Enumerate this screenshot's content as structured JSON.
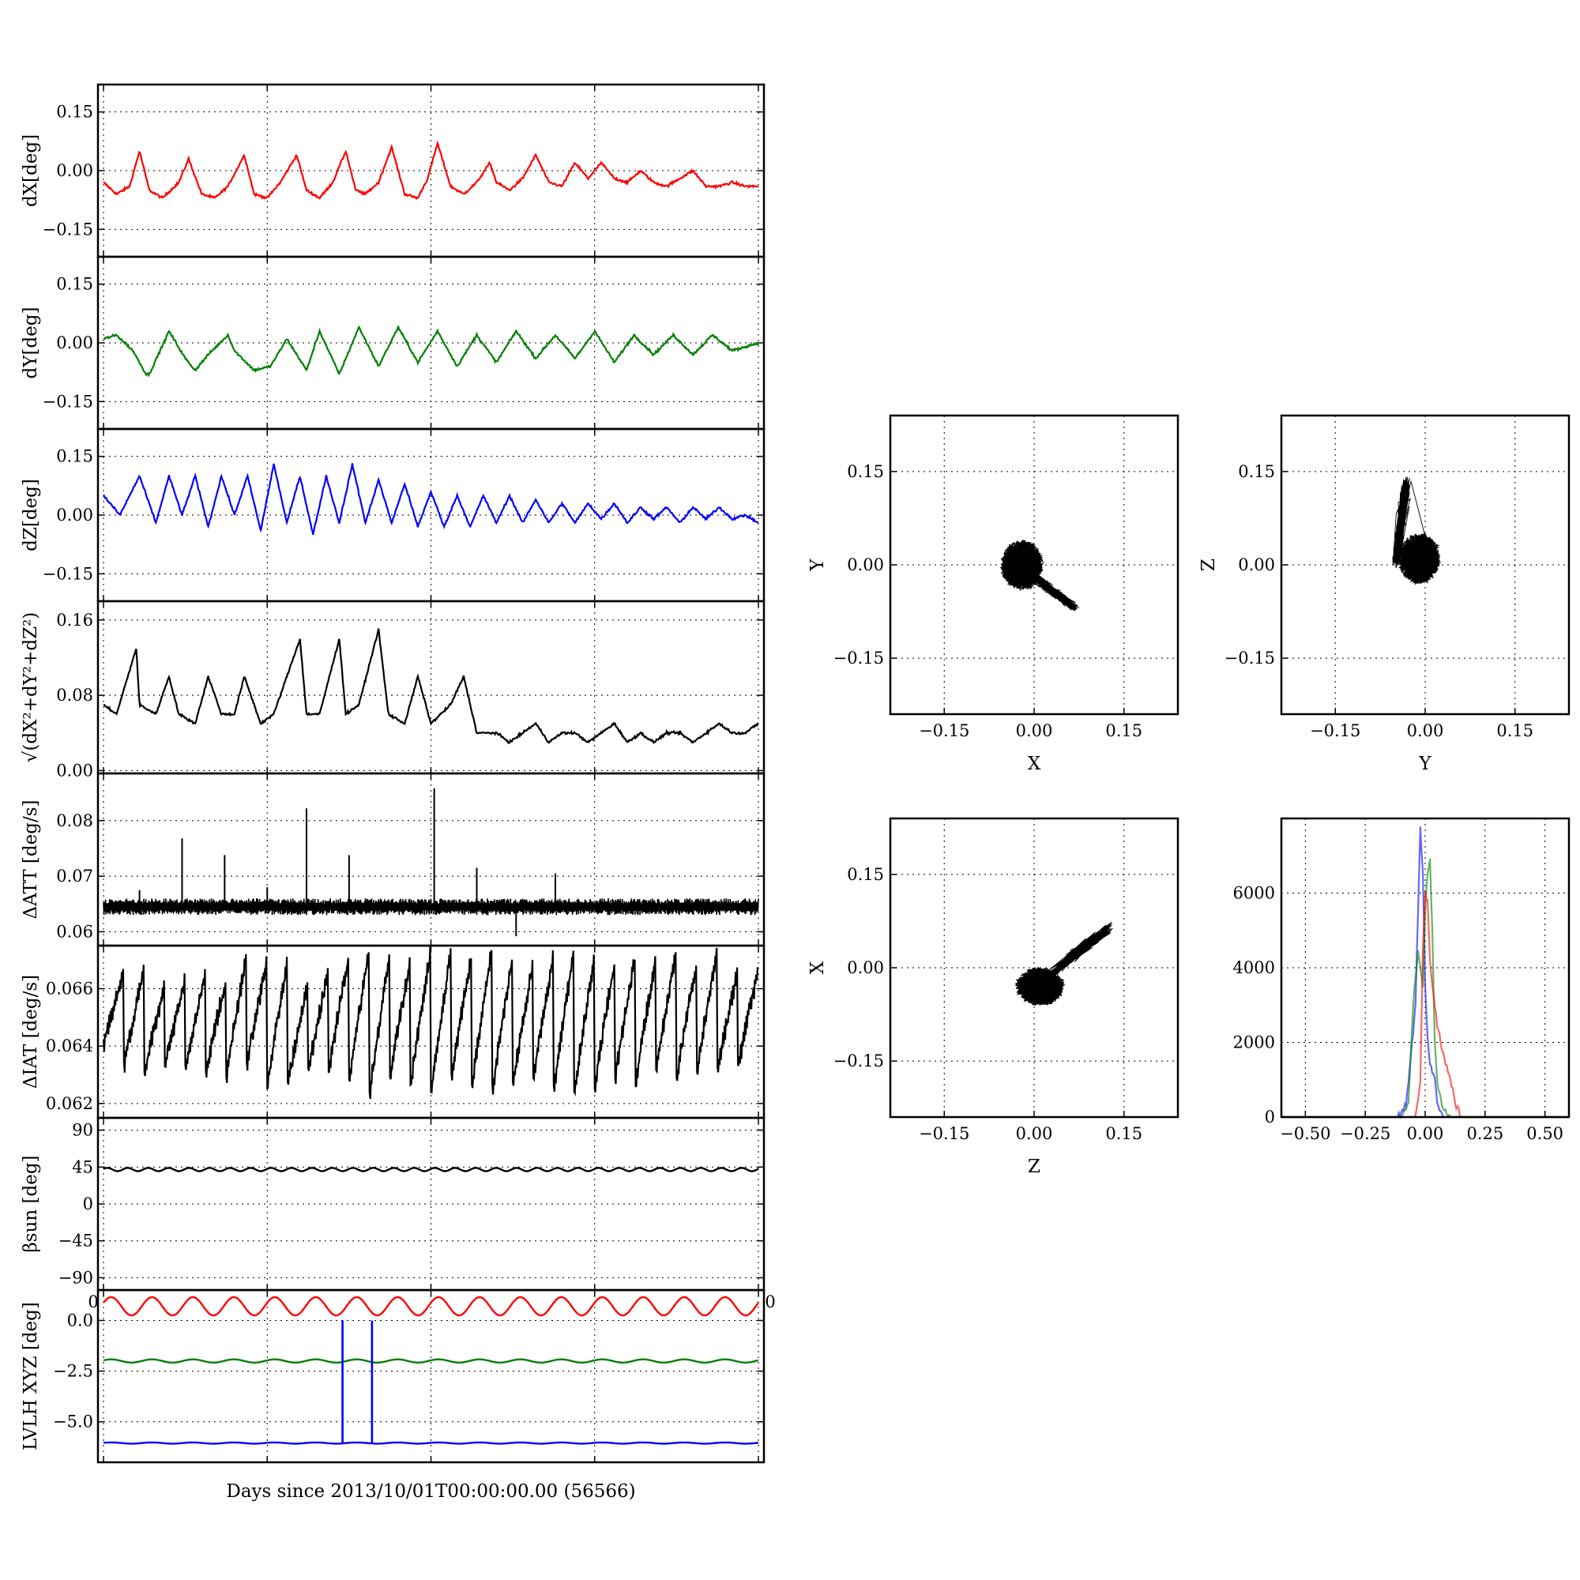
{
  "figure": {
    "xlabel": "Days since 2013/10/01T00:00:00.00 (56566)"
  },
  "chart_data": [
    {
      "id": "dx",
      "type": "line",
      "ylabel": "dX[deg]",
      "ylim": [
        -0.22,
        0.22
      ],
      "yticks": [
        -0.15,
        0.0,
        0.15
      ],
      "ytick_labels": [
        "−0.15",
        "0.00",
        "0.15"
      ],
      "xlim": [
        0,
        1
      ],
      "grid": true,
      "series": [
        {
          "color": "#ff0000",
          "x": [
            0.0,
            0.02,
            0.04,
            0.055,
            0.07,
            0.09,
            0.115,
            0.13,
            0.15,
            0.17,
            0.19,
            0.215,
            0.23,
            0.25,
            0.27,
            0.295,
            0.31,
            0.33,
            0.35,
            0.37,
            0.385,
            0.4,
            0.42,
            0.44,
            0.46,
            0.48,
            0.495,
            0.51,
            0.53,
            0.55,
            0.57,
            0.59,
            0.6,
            0.62,
            0.64,
            0.66,
            0.68,
            0.7,
            0.72,
            0.74,
            0.76,
            0.78,
            0.8,
            0.82,
            0.84,
            0.86,
            0.88,
            0.9,
            0.92,
            0.94,
            0.96,
            0.98,
            1.0
          ],
          "y": [
            -0.03,
            -0.06,
            -0.04,
            0.05,
            -0.05,
            -0.07,
            -0.03,
            0.03,
            -0.06,
            -0.07,
            -0.04,
            0.04,
            -0.06,
            -0.07,
            -0.03,
            0.04,
            -0.05,
            -0.07,
            -0.03,
            0.05,
            -0.05,
            -0.06,
            -0.03,
            0.06,
            -0.06,
            -0.07,
            -0.02,
            0.07,
            -0.04,
            -0.06,
            -0.03,
            0.02,
            -0.03,
            -0.05,
            -0.02,
            0.04,
            -0.03,
            -0.04,
            0.02,
            -0.02,
            0.02,
            -0.02,
            -0.03,
            0.0,
            -0.03,
            -0.04,
            -0.02,
            0.0,
            -0.04,
            -0.04,
            -0.03,
            -0.04,
            -0.04
          ]
        }
      ]
    },
    {
      "id": "dy",
      "type": "line",
      "ylabel": "dY[deg]",
      "ylim": [
        -0.22,
        0.22
      ],
      "yticks": [
        -0.15,
        0.0,
        0.15
      ],
      "ytick_labels": [
        "−0.15",
        "0.00",
        "0.15"
      ],
      "xlim": [
        0,
        1
      ],
      "grid": true,
      "series": [
        {
          "color": "#008000",
          "x": [
            0.0,
            0.02,
            0.045,
            0.065,
            0.07,
            0.1,
            0.125,
            0.14,
            0.16,
            0.19,
            0.2,
            0.23,
            0.255,
            0.28,
            0.31,
            0.33,
            0.36,
            0.39,
            0.42,
            0.45,
            0.48,
            0.51,
            0.54,
            0.57,
            0.6,
            0.63,
            0.66,
            0.69,
            0.72,
            0.75,
            0.78,
            0.81,
            0.84,
            0.87,
            0.9,
            0.93,
            0.96,
            1.0
          ],
          "y": [
            0.01,
            0.02,
            -0.02,
            -0.08,
            -0.08,
            0.03,
            -0.04,
            -0.07,
            -0.03,
            0.02,
            -0.02,
            -0.07,
            -0.06,
            0.01,
            -0.07,
            0.03,
            -0.08,
            0.04,
            -0.06,
            0.04,
            -0.05,
            0.03,
            -0.06,
            0.02,
            -0.05,
            0.03,
            -0.04,
            0.02,
            -0.04,
            0.03,
            -0.05,
            0.02,
            -0.03,
            0.02,
            -0.03,
            0.02,
            -0.02,
            0.0
          ]
        }
      ]
    },
    {
      "id": "dz",
      "type": "line",
      "ylabel": "dZ[deg]",
      "ylim": [
        -0.22,
        0.22
      ],
      "yticks": [
        -0.15,
        0.0,
        0.15
      ],
      "ytick_labels": [
        "−0.15",
        "0.00",
        "0.15"
      ],
      "xlim": [
        0,
        1
      ],
      "grid": true,
      "series": [
        {
          "color": "#0000ff",
          "x": [
            0.0,
            0.025,
            0.055,
            0.08,
            0.1,
            0.12,
            0.14,
            0.16,
            0.18,
            0.2,
            0.22,
            0.24,
            0.26,
            0.28,
            0.3,
            0.32,
            0.34,
            0.36,
            0.38,
            0.4,
            0.42,
            0.44,
            0.46,
            0.48,
            0.5,
            0.52,
            0.54,
            0.56,
            0.58,
            0.6,
            0.62,
            0.64,
            0.66,
            0.68,
            0.7,
            0.72,
            0.74,
            0.76,
            0.78,
            0.8,
            0.82,
            0.84,
            0.86,
            0.88,
            0.9,
            0.92,
            0.94,
            0.96,
            0.98,
            1.0
          ],
          "y": [
            0.05,
            0.0,
            0.1,
            -0.02,
            0.1,
            0.0,
            0.1,
            -0.03,
            0.1,
            0.0,
            0.1,
            -0.04,
            0.13,
            -0.02,
            0.1,
            -0.05,
            0.1,
            -0.02,
            0.13,
            -0.02,
            0.09,
            -0.02,
            0.08,
            -0.03,
            0.06,
            -0.03,
            0.05,
            -0.03,
            0.05,
            -0.02,
            0.05,
            -0.02,
            0.04,
            -0.02,
            0.03,
            -0.02,
            0.03,
            -0.01,
            0.03,
            -0.02,
            0.02,
            -0.01,
            0.02,
            -0.02,
            0.02,
            -0.01,
            0.02,
            -0.01,
            0.0,
            -0.02
          ]
        }
      ]
    },
    {
      "id": "dr",
      "type": "line",
      "ylabel": "√(dX²+dY²+dZ²)",
      "ylim": [
        -0.003,
        0.18
      ],
      "yticks": [
        0.0,
        0.08,
        0.16
      ],
      "ytick_labels": [
        "0.00",
        "0.08",
        "0.16"
      ],
      "xlim": [
        0,
        1
      ],
      "grid": true,
      "series": [
        {
          "color": "#000000",
          "x": [
            0.0,
            0.02,
            0.05,
            0.055,
            0.08,
            0.1,
            0.115,
            0.14,
            0.16,
            0.18,
            0.2,
            0.215,
            0.24,
            0.26,
            0.3,
            0.31,
            0.33,
            0.36,
            0.37,
            0.39,
            0.42,
            0.435,
            0.46,
            0.48,
            0.5,
            0.53,
            0.55,
            0.57,
            0.6,
            0.62,
            0.64,
            0.66,
            0.68,
            0.7,
            0.72,
            0.74,
            0.76,
            0.78,
            0.8,
            0.82,
            0.84,
            0.86,
            0.88,
            0.9,
            0.92,
            0.94,
            0.96,
            0.98,
            1.0
          ],
          "y": [
            0.07,
            0.06,
            0.13,
            0.07,
            0.06,
            0.1,
            0.06,
            0.05,
            0.1,
            0.06,
            0.06,
            0.1,
            0.05,
            0.06,
            0.14,
            0.06,
            0.06,
            0.14,
            0.06,
            0.07,
            0.15,
            0.06,
            0.05,
            0.1,
            0.05,
            0.07,
            0.1,
            0.04,
            0.04,
            0.03,
            0.04,
            0.05,
            0.03,
            0.04,
            0.04,
            0.03,
            0.04,
            0.05,
            0.03,
            0.04,
            0.03,
            0.04,
            0.04,
            0.03,
            0.04,
            0.05,
            0.04,
            0.04,
            0.05
          ]
        }
      ]
    },
    {
      "id": "datt",
      "type": "line",
      "ylabel": "ΔATT [deg/s]",
      "ylim": [
        0.0575,
        0.0885
      ],
      "yticks": [
        0.06,
        0.07,
        0.08
      ],
      "ytick_labels": [
        "0.06",
        "0.07",
        "0.08"
      ],
      "xlim": [
        0,
        1
      ],
      "grid": true,
      "baseline": 0.0645,
      "band": 0.0015,
      "spikes": [
        {
          "x": 0.055,
          "y": 0.0675
        },
        {
          "x": 0.12,
          "y": 0.0768
        },
        {
          "x": 0.185,
          "y": 0.0738
        },
        {
          "x": 0.25,
          "y": 0.068
        },
        {
          "x": 0.31,
          "y": 0.0822
        },
        {
          "x": 0.375,
          "y": 0.0738
        },
        {
          "x": 0.505,
          "y": 0.0858
        },
        {
          "x": 0.57,
          "y": 0.0715
        },
        {
          "x": 0.63,
          "y": 0.0592
        },
        {
          "x": 0.69,
          "y": 0.0705
        }
      ]
    },
    {
      "id": "diat",
      "type": "line",
      "ylabel": "ΔIAT [deg/s]",
      "ylim": [
        0.0615,
        0.0675
      ],
      "yticks": [
        0.062,
        0.064,
        0.066
      ],
      "ytick_labels": [
        "0.062",
        "0.064",
        "0.066"
      ],
      "xlim": [
        0,
        1
      ],
      "grid": true,
      "teeth": {
        "count": 32,
        "low": [
          0.064,
          0.0632,
          0.063,
          0.0632,
          0.063,
          0.063,
          0.0628,
          0.0633,
          0.0625,
          0.0625,
          0.063,
          0.063,
          0.0627,
          0.0622,
          0.0628,
          0.0625,
          0.0622,
          0.0628,
          0.0625,
          0.0623,
          0.0625,
          0.0628,
          0.0623,
          0.0622,
          0.0625,
          0.0628,
          0.0625,
          0.063,
          0.0628,
          0.063,
          0.063,
          0.0632
        ],
        "high": [
          0.0665,
          0.0665,
          0.066,
          0.0662,
          0.0665,
          0.0662,
          0.067,
          0.0668,
          0.0668,
          0.066,
          0.0665,
          0.067,
          0.0672,
          0.067,
          0.0668,
          0.0672,
          0.0672,
          0.067,
          0.0673,
          0.067,
          0.0668,
          0.067,
          0.0672,
          0.067,
          0.0668,
          0.067,
          0.067,
          0.0672,
          0.0668,
          0.0673,
          0.0665,
          0.0665
        ]
      }
    },
    {
      "id": "beta",
      "type": "line",
      "ylabel": "βsun [deg]",
      "ylim": [
        -105,
        105
      ],
      "yticks": [
        -90,
        -45,
        0,
        45,
        90
      ],
      "ytick_labels": [
        "−90",
        "−45",
        "0",
        "45",
        "90"
      ],
      "xlim": [
        0,
        1
      ],
      "grid": true,
      "xtick_labels_visible": [
        "0",
        "0"
      ],
      "series": [
        {
          "color": "#000000",
          "mean": 42,
          "amplitude": 2,
          "cycles": 32
        }
      ]
    },
    {
      "id": "lvlh",
      "type": "line",
      "ylabel": "LVLH XYZ [deg]",
      "ylim": [
        -7.0,
        1.5
      ],
      "yticks": [
        -5.0,
        -2.5,
        0.0
      ],
      "ytick_labels": [
        "−5.0",
        "−2.5",
        "0.0"
      ],
      "xlim": [
        0,
        1
      ],
      "grid": true,
      "series": [
        {
          "color": "#ff0000",
          "mean": 0.7,
          "amplitude": 0.45,
          "cycles": 16
        },
        {
          "color": "#008000",
          "mean": -2.0,
          "amplitude": 0.08,
          "cycles": 16
        },
        {
          "color": "#0000ff",
          "mean": -6.05,
          "amplitude": 0.03,
          "cycles": 16,
          "spikes": [
            {
              "x": 0.365,
              "y": 0.0
            },
            {
              "x": 0.41,
              "y": 0.0
            }
          ]
        }
      ]
    },
    {
      "id": "scatter_xy",
      "type": "scatter",
      "xlabel": "X",
      "ylabel": "Y",
      "xlim": [
        -0.24,
        0.24
      ],
      "ylim": [
        -0.24,
        0.24
      ],
      "ticks": [
        -0.15,
        0.0,
        0.15
      ],
      "tick_labels": [
        "−0.15",
        "0.00",
        "0.15"
      ],
      "grid": true,
      "cloud": {
        "cx": -0.02,
        "cy": 0.0,
        "rx": 0.035,
        "ry": 0.04,
        "tail_to": [
          0.07,
          -0.07
        ],
        "tail_from": [
          0.0,
          -0.02
        ]
      }
    },
    {
      "id": "scatter_yz",
      "type": "scatter",
      "xlabel": "Y",
      "ylabel": "Z",
      "xlim": [
        -0.24,
        0.24
      ],
      "ylim": [
        -0.24,
        0.24
      ],
      "ticks": [
        -0.15,
        0.0,
        0.15
      ],
      "tick_labels": [
        "−0.15",
        "0.00",
        "0.15"
      ],
      "grid": true,
      "cloud": {
        "cx": -0.01,
        "cy": 0.01,
        "rx": 0.035,
        "ry": 0.04,
        "tail_to": [
          -0.03,
          0.14
        ],
        "tail_from": [
          -0.05,
          0.0
        ]
      }
    },
    {
      "id": "scatter_zx",
      "type": "scatter",
      "xlabel": "Z",
      "ylabel": "X",
      "xlim": [
        -0.24,
        0.24
      ],
      "ylim": [
        -0.24,
        0.24
      ],
      "ticks": [
        -0.15,
        0.0,
        0.15
      ],
      "tick_labels": [
        "−0.15",
        "0.00",
        "0.15"
      ],
      "grid": true,
      "cloud": {
        "cx": 0.01,
        "cy": -0.03,
        "rx": 0.04,
        "ry": 0.03,
        "tail_to": [
          0.13,
          0.07
        ],
        "tail_from": [
          0.03,
          -0.01
        ]
      }
    },
    {
      "id": "histogram",
      "type": "line",
      "xlim": [
        -0.6,
        0.6
      ],
      "ylim": [
        0,
        8000
      ],
      "xticks": [
        -0.5,
        -0.25,
        0.0,
        0.25,
        0.5
      ],
      "xtick_labels": [
        "−0.50",
        "−0.25",
        "0.00",
        "0.25",
        "0.50"
      ],
      "yticks": [
        0,
        2000,
        4000,
        6000
      ],
      "ytick_labels": [
        "0",
        "2000",
        "4000",
        "6000"
      ],
      "grid": true,
      "series": [
        {
          "color": "#0000ff",
          "x": [
            -0.6,
            -0.12,
            -0.08,
            -0.06,
            -0.04,
            -0.03,
            -0.02,
            -0.01,
            0.0,
            0.01,
            0.02,
            0.04,
            0.05,
            0.08,
            0.6
          ],
          "y": [
            0,
            0,
            300,
            1600,
            3000,
            5500,
            7700,
            6600,
            3500,
            2200,
            1500,
            1000,
            400,
            0,
            0
          ]
        },
        {
          "color": "#008000",
          "x": [
            -0.6,
            -0.1,
            -0.07,
            -0.05,
            -0.03,
            -0.01,
            0.0,
            0.01,
            0.02,
            0.03,
            0.04,
            0.05,
            0.07,
            0.1,
            0.6
          ],
          "y": [
            0,
            0,
            400,
            3000,
            4500,
            3500,
            5500,
            6600,
            6900,
            5000,
            2000,
            900,
            300,
            0,
            0
          ]
        },
        {
          "color": "#ff0000",
          "x": [
            -0.6,
            -0.04,
            -0.02,
            -0.01,
            0.0,
            0.01,
            0.02,
            0.03,
            0.05,
            0.07,
            0.09,
            0.11,
            0.13,
            0.15,
            0.6
          ],
          "y": [
            0,
            0,
            1000,
            4500,
            6000,
            5800,
            4200,
            3500,
            2500,
            1800,
            1300,
            900,
            300,
            0,
            0
          ]
        }
      ]
    }
  ]
}
